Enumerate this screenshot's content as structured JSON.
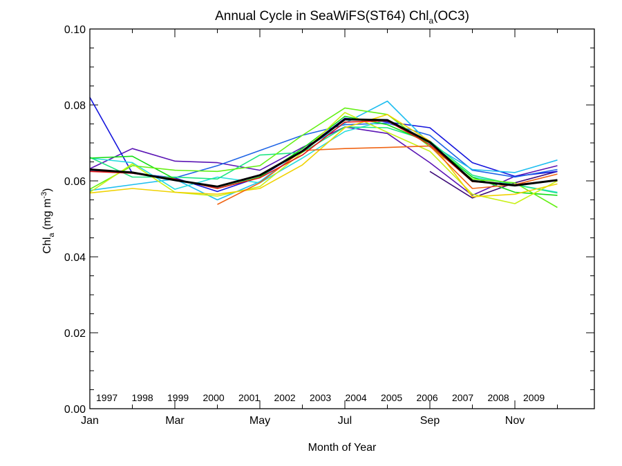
{
  "chart_data": {
    "type": "line",
    "title": {
      "main": "Annual Cycle in SeaWiFS(ST64) Chl",
      "sub": "a",
      "tail": "(OC3)"
    },
    "xlabel": "Month of Year",
    "ylabel": {
      "main": "Chl",
      "sub": "a",
      "units_open": " (mg m",
      "sup": "-3",
      "units_close": ")"
    },
    "xlim": [
      1,
      12.87
    ],
    "ylim": [
      0,
      0.1
    ],
    "x_ticks": [
      {
        "value": 1,
        "label": "Jan"
      },
      {
        "value": 3,
        "label": "Mar"
      },
      {
        "value": 5,
        "label": "May"
      },
      {
        "value": 7,
        "label": "Jul"
      },
      {
        "value": 9,
        "label": "Sep"
      },
      {
        "value": 11,
        "label": "Nov"
      }
    ],
    "y_ticks": [
      {
        "value": 0,
        "label": "0.00"
      },
      {
        "value": 0.02,
        "label": "0.02"
      },
      {
        "value": 0.04,
        "label": "0.04"
      },
      {
        "value": 0.06,
        "label": "0.06"
      },
      {
        "value": 0.08,
        "label": "0.08"
      },
      {
        "value": 0.1,
        "label": "0.10"
      }
    ],
    "legend_position": "bottom-left",
    "series": [
      {
        "name": "1997",
        "color": "#3c0a78",
        "x": [
          9,
          10,
          11,
          12
        ],
        "y": [
          0.0625,
          0.0555,
          0.0595,
          0.0625
        ]
      },
      {
        "name": "1998",
        "color": "#5a14b4",
        "x": [
          1,
          2,
          3,
          4,
          5,
          6,
          7,
          8,
          9,
          10,
          11,
          12
        ],
        "y": [
          0.0632,
          0.0685,
          0.0652,
          0.0648,
          0.0628,
          0.0688,
          0.0742,
          0.0725,
          0.0648,
          0.0562,
          0.0612,
          0.064
        ]
      },
      {
        "name": "1999",
        "color": "#1414dc",
        "x": [
          1,
          2,
          3,
          4,
          5,
          6,
          7,
          8,
          9,
          10,
          11,
          12
        ],
        "y": [
          0.082,
          0.062,
          0.0608,
          0.0572,
          0.061,
          0.068,
          0.0765,
          0.0755,
          0.074,
          0.0648,
          0.0612,
          0.0625
        ]
      },
      {
        "name": "2000",
        "color": "#1e64e6",
        "x": [
          1,
          2,
          3,
          4,
          5,
          6,
          7,
          8,
          9,
          10,
          11,
          12
        ],
        "y": [
          0.0628,
          0.062,
          0.0608,
          0.064,
          0.068,
          0.072,
          0.0748,
          0.0752,
          0.072,
          0.0628,
          0.061,
          0.063
        ]
      },
      {
        "name": "2001",
        "color": "#1ebef0",
        "x": [
          1,
          2,
          3,
          4,
          5,
          6,
          7,
          8,
          9,
          10,
          11,
          12
        ],
        "y": [
          0.0575,
          0.059,
          0.0605,
          0.055,
          0.0598,
          0.068,
          0.0752,
          0.081,
          0.0698,
          0.063,
          0.0622,
          0.0655
        ]
      },
      {
        "name": "2002",
        "color": "#28dcdc",
        "x": [
          1,
          2,
          3,
          4,
          5,
          6,
          7,
          8,
          9,
          10,
          11,
          12
        ],
        "y": [
          0.066,
          0.0648,
          0.0578,
          0.061,
          0.0595,
          0.066,
          0.073,
          0.076,
          0.0695,
          0.061,
          0.059,
          0.057
        ]
      },
      {
        "name": "2003",
        "color": "#1ee682",
        "x": [
          1,
          2,
          3,
          4,
          5,
          6,
          7,
          8,
          9,
          10,
          11,
          12
        ],
        "y": [
          0.0662,
          0.061,
          0.061,
          0.0605,
          0.0668,
          0.0675,
          0.0742,
          0.074,
          0.0705,
          0.0615,
          0.059,
          0.0568
        ]
      },
      {
        "name": "2004",
        "color": "#14dc14",
        "x": [
          1,
          2,
          3,
          4,
          5,
          6,
          7,
          8,
          9,
          10,
          11,
          12
        ],
        "y": [
          0.066,
          0.0665,
          0.0605,
          0.058,
          0.061,
          0.0685,
          0.077,
          0.0748,
          0.07,
          0.061,
          0.057,
          0.0562
        ]
      },
      {
        "name": "2005",
        "color": "#64f014",
        "x": [
          1,
          2,
          3,
          4,
          5,
          6,
          7,
          8,
          9,
          10,
          11,
          12
        ],
        "y": [
          0.0578,
          0.064,
          0.0628,
          0.0625,
          0.064,
          0.072,
          0.0792,
          0.0775,
          0.069,
          0.0605,
          0.0595,
          0.053
        ]
      },
      {
        "name": "2006",
        "color": "#c8f014",
        "x": [
          1,
          2,
          3,
          4,
          5,
          6,
          7,
          8,
          9,
          10,
          11,
          12
        ],
        "y": [
          0.057,
          0.0645,
          0.057,
          0.056,
          0.0585,
          0.0675,
          0.078,
          0.0728,
          0.0678,
          0.0565,
          0.054,
          0.06
        ]
      },
      {
        "name": "2007",
        "color": "#f0d200",
        "x": [
          1,
          2,
          3,
          4,
          5,
          6,
          7,
          8,
          9,
          10,
          11,
          12
        ],
        "y": [
          0.0568,
          0.058,
          0.057,
          0.0565,
          0.058,
          0.0642,
          0.074,
          0.0775,
          0.0705,
          0.0558,
          0.0565,
          0.0592
        ]
      },
      {
        "name": "2008",
        "color": "#f06414",
        "x": [
          4,
          5,
          6,
          7,
          8,
          9,
          10,
          11,
          12
        ],
        "y": [
          0.0538,
          0.0595,
          0.068,
          0.0685,
          0.0688,
          0.0692,
          0.058,
          0.059,
          0.0618
        ]
      },
      {
        "name": "2009",
        "color": "#e61414",
        "x": [
          1,
          2,
          3,
          4,
          5,
          6,
          7,
          8,
          9,
          10,
          11,
          12
        ],
        "y": [
          0.0625,
          0.062,
          0.0605,
          0.058,
          0.0608,
          0.0668,
          0.0755,
          0.0758,
          0.0695,
          0.0598,
          0.059,
          0.0602
        ]
      },
      {
        "name": "",
        "color": "#000000",
        "x": [
          1,
          2,
          3,
          4,
          5,
          6,
          7,
          8,
          9,
          10,
          11,
          12
        ],
        "y": [
          0.063,
          0.0622,
          0.0602,
          0.0585,
          0.0615,
          0.0678,
          0.0762,
          0.076,
          0.0702,
          0.06,
          0.0588,
          0.0602
        ]
      }
    ]
  }
}
